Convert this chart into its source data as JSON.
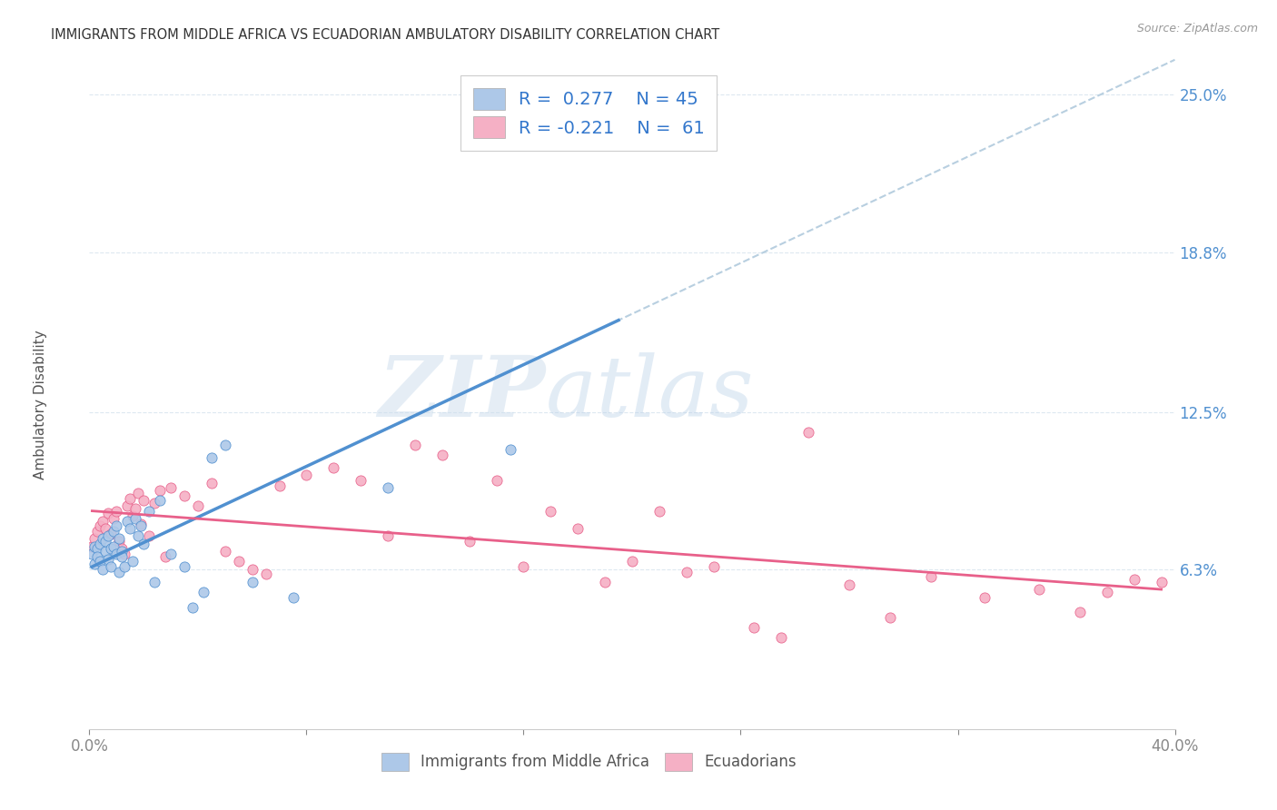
{
  "title": "IMMIGRANTS FROM MIDDLE AFRICA VS ECUADORIAN AMBULATORY DISABILITY CORRELATION CHART",
  "source": "Source: ZipAtlas.com",
  "ylabel": "Ambulatory Disability",
  "ytick_labels": [
    "6.3%",
    "12.5%",
    "18.8%",
    "25.0%"
  ],
  "ytick_values": [
    0.063,
    0.125,
    0.188,
    0.25
  ],
  "xlim": [
    0.0,
    0.4
  ],
  "ylim": [
    0.0,
    0.265
  ],
  "blue_R": 0.277,
  "blue_N": 45,
  "pink_R": -0.221,
  "pink_N": 61,
  "blue_color": "#adc8e8",
  "pink_color": "#f5b0c5",
  "blue_line_color": "#5090d0",
  "pink_line_color": "#e8608a",
  "dashed_line_color": "#b8cfe0",
  "legend_label_blue": "Immigrants from Middle Africa",
  "legend_label_pink": "Ecuadorians",
  "blue_scatter_x": [
    0.001,
    0.002,
    0.002,
    0.003,
    0.003,
    0.004,
    0.004,
    0.005,
    0.005,
    0.006,
    0.006,
    0.007,
    0.007,
    0.008,
    0.008,
    0.009,
    0.009,
    0.01,
    0.01,
    0.011,
    0.011,
    0.012,
    0.012,
    0.013,
    0.014,
    0.015,
    0.016,
    0.017,
    0.018,
    0.019,
    0.02,
    0.022,
    0.024,
    0.026,
    0.03,
    0.035,
    0.038,
    0.042,
    0.045,
    0.05,
    0.06,
    0.075,
    0.11,
    0.155,
    0.195
  ],
  "blue_scatter_y": [
    0.069,
    0.072,
    0.065,
    0.071,
    0.068,
    0.073,
    0.066,
    0.075,
    0.063,
    0.07,
    0.074,
    0.067,
    0.076,
    0.071,
    0.064,
    0.078,
    0.072,
    0.08,
    0.069,
    0.075,
    0.062,
    0.07,
    0.068,
    0.064,
    0.082,
    0.079,
    0.066,
    0.083,
    0.076,
    0.08,
    0.073,
    0.086,
    0.058,
    0.09,
    0.069,
    0.064,
    0.048,
    0.054,
    0.107,
    0.112,
    0.058,
    0.052,
    0.095,
    0.11,
    0.23
  ],
  "pink_scatter_x": [
    0.001,
    0.002,
    0.003,
    0.004,
    0.005,
    0.006,
    0.007,
    0.008,
    0.009,
    0.01,
    0.011,
    0.012,
    0.013,
    0.014,
    0.015,
    0.016,
    0.017,
    0.018,
    0.019,
    0.02,
    0.022,
    0.024,
    0.026,
    0.028,
    0.03,
    0.035,
    0.04,
    0.045,
    0.05,
    0.055,
    0.06,
    0.065,
    0.07,
    0.08,
    0.09,
    0.1,
    0.11,
    0.12,
    0.13,
    0.14,
    0.15,
    0.16,
    0.17,
    0.18,
    0.19,
    0.2,
    0.21,
    0.22,
    0.23,
    0.245,
    0.255,
    0.265,
    0.28,
    0.295,
    0.31,
    0.33,
    0.35,
    0.365,
    0.375,
    0.385,
    0.395
  ],
  "pink_scatter_y": [
    0.072,
    0.075,
    0.078,
    0.08,
    0.082,
    0.079,
    0.085,
    0.077,
    0.083,
    0.086,
    0.074,
    0.071,
    0.069,
    0.088,
    0.091,
    0.084,
    0.087,
    0.093,
    0.081,
    0.09,
    0.076,
    0.089,
    0.094,
    0.068,
    0.095,
    0.092,
    0.088,
    0.097,
    0.07,
    0.066,
    0.063,
    0.061,
    0.096,
    0.1,
    0.103,
    0.098,
    0.076,
    0.112,
    0.108,
    0.074,
    0.098,
    0.064,
    0.086,
    0.079,
    0.058,
    0.066,
    0.086,
    0.062,
    0.064,
    0.04,
    0.036,
    0.117,
    0.057,
    0.044,
    0.06,
    0.052,
    0.055,
    0.046,
    0.054,
    0.059,
    0.058
  ],
  "watermark_zip": "ZIP",
  "watermark_atlas": "atlas",
  "background_color": "#ffffff",
  "grid_color": "#dde8f0"
}
